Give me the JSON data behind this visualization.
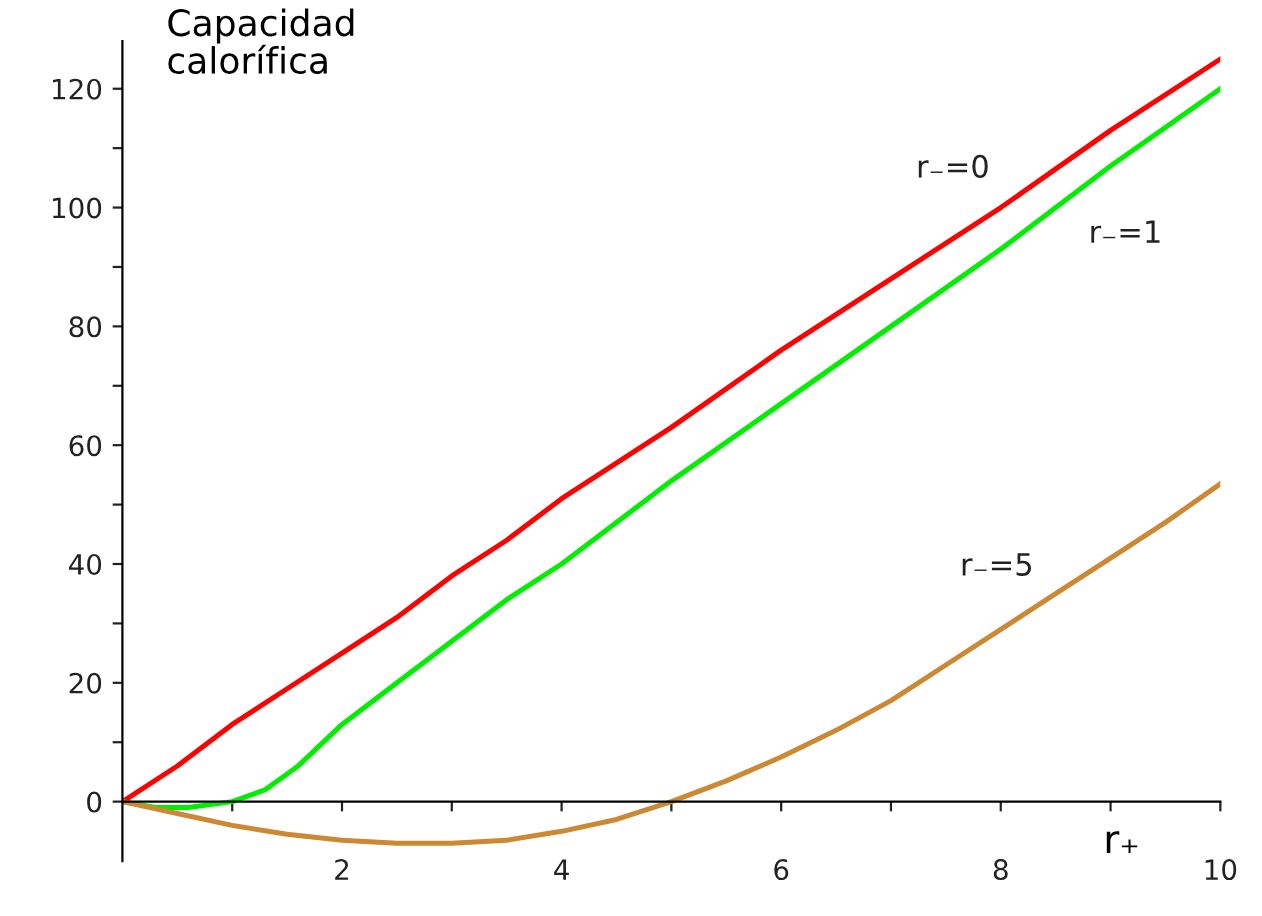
{
  "chart_data": {
    "type": "line",
    "ylabel": "Capacidad\ncalorífica",
    "xlabel": "r₊",
    "series": [
      {
        "name": "r₋=0",
        "color": "#ff0000",
        "x": [
          0,
          0.5,
          1,
          1.5,
          2,
          2.5,
          3,
          3.5,
          4,
          5,
          6,
          7,
          8,
          9,
          10
        ],
        "values": [
          0,
          6,
          13,
          19,
          25,
          31,
          38,
          44,
          51,
          63,
          76,
          88,
          100,
          113,
          125
        ]
      },
      {
        "name": "r₋=1",
        "color": "#00ee00",
        "x": [
          0,
          0.3,
          0.6,
          1,
          1.3,
          1.6,
          2,
          2.5,
          3,
          3.5,
          4,
          5,
          6,
          7,
          8,
          9,
          10
        ],
        "values": [
          0,
          -1,
          -1,
          0,
          2,
          6,
          13,
          20,
          27,
          34,
          40,
          54,
          67,
          80,
          93,
          107,
          120
        ]
      },
      {
        "name": "r₋=5",
        "color": "#cc8833",
        "x": [
          0,
          0.5,
          1,
          1.5,
          2,
          2.5,
          3,
          3.5,
          4,
          4.5,
          5,
          5.5,
          6,
          6.5,
          7,
          7.5,
          8,
          8.5,
          9,
          9.5,
          10
        ],
        "values": [
          0,
          -2,
          -4,
          -5.5,
          -6.5,
          -7,
          -7,
          -6.5,
          -5,
          -3,
          0,
          3.5,
          7.5,
          12,
          17,
          23,
          29,
          35,
          41,
          47,
          53.5
        ]
      }
    ],
    "xlim": [
      0,
      10
    ],
    "ylim": [
      -10,
      128
    ],
    "xticks": [
      {
        "value": 1,
        "label": null
      },
      2,
      {
        "value": 3,
        "label": null
      },
      4,
      {
        "value": 5,
        "label": null
      },
      6,
      {
        "value": 7,
        "label": null
      },
      8,
      {
        "value": 9,
        "label": null
      },
      10
    ],
    "yticks": [
      0,
      {
        "value": 10,
        "label": null
      },
      20,
      {
        "value": 30,
        "label": null
      },
      40,
      {
        "value": 50,
        "label": null
      },
      60,
      {
        "value": 70,
        "label": null
      },
      80,
      {
        "value": 90,
        "label": null
      },
      100,
      {
        "value": 110,
        "label": null
      },
      120
    ],
    "grid": false,
    "legend": false,
    "marker": "none",
    "line_style": "solid"
  }
}
